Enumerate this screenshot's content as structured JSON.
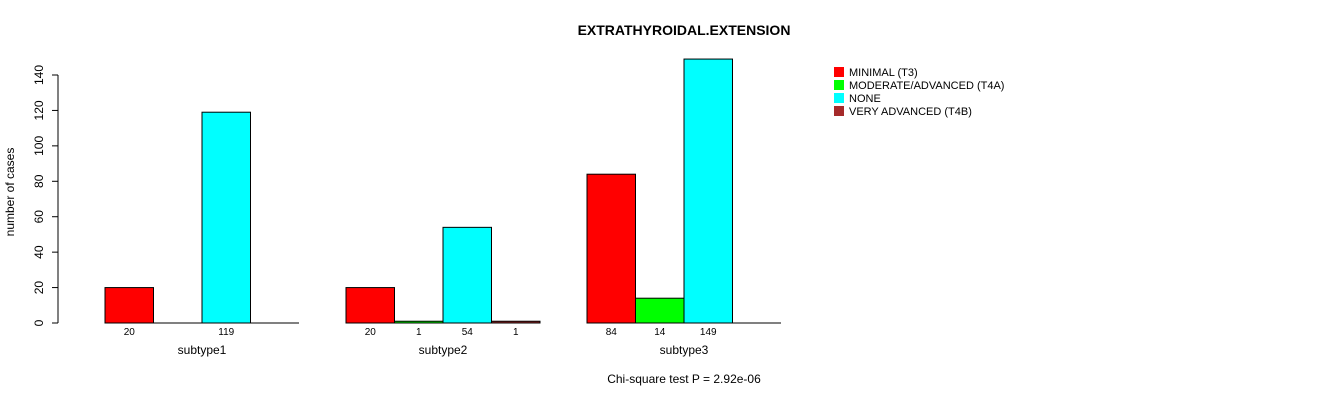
{
  "chart_data": {
    "type": "bar",
    "title": "EXTRATHYROIDAL.EXTENSION",
    "ylabel": "number of cases",
    "xlabel": "",
    "ylim": [
      0,
      140
    ],
    "yticks": [
      0,
      20,
      40,
      60,
      80,
      100,
      120,
      140
    ],
    "footnote": "Chi-square test P = 2.92e-06",
    "groups": [
      {
        "name": "subtype1",
        "bars": [
          {
            "series": "MINIMAL (T3)",
            "value": 20,
            "label": "20"
          },
          {
            "series": "MODERATE/ADVANCED (T4A)",
            "value": 0,
            "label": ""
          },
          {
            "series": "NONE",
            "value": 119,
            "label": "119"
          },
          {
            "series": "VERY ADVANCED (T4B)",
            "value": 0,
            "label": ""
          }
        ]
      },
      {
        "name": "subtype2",
        "bars": [
          {
            "series": "MINIMAL (T3)",
            "value": 20,
            "label": "20"
          },
          {
            "series": "MODERATE/ADVANCED (T4A)",
            "value": 1,
            "label": "1"
          },
          {
            "series": "NONE",
            "value": 54,
            "label": "54"
          },
          {
            "series": "VERY ADVANCED (T4B)",
            "value": 1,
            "label": "1"
          }
        ]
      },
      {
        "name": "subtype3",
        "bars": [
          {
            "series": "MINIMAL (T3)",
            "value": 84,
            "label": "84"
          },
          {
            "series": "MODERATE/ADVANCED (T4A)",
            "value": 14,
            "label": "14"
          },
          {
            "series": "NONE",
            "value": 149,
            "label": "149"
          },
          {
            "series": "VERY ADVANCED (T4B)",
            "value": 0,
            "label": ""
          }
        ]
      }
    ],
    "legend": [
      {
        "name": "MINIMAL (T3)",
        "color": "#ff0000"
      },
      {
        "name": "MODERATE/ADVANCED (T4A)",
        "color": "#00ff00"
      },
      {
        "name": "NONE",
        "color": "#00ffff"
      },
      {
        "name": "VERY ADVANCED (T4B)",
        "color": "#a52a2a"
      }
    ],
    "legend_position": "top-right"
  }
}
